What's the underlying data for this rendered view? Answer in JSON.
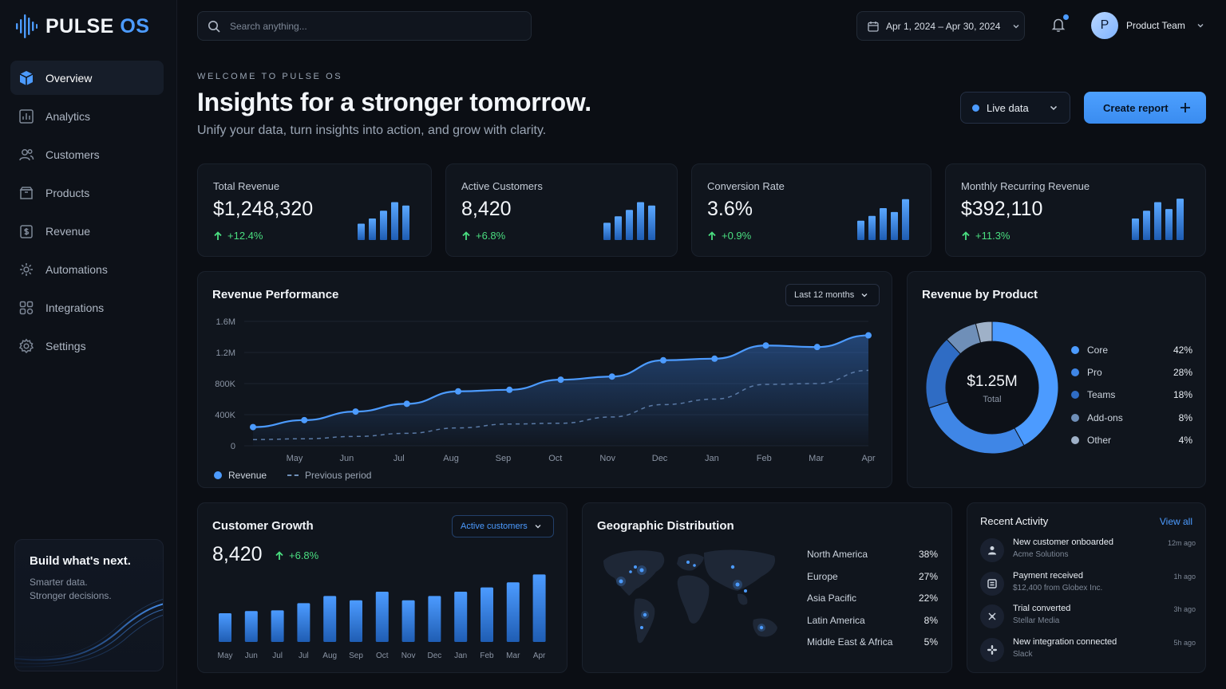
{
  "app": {
    "name_main": "PULSE",
    "name_accent": "OS"
  },
  "colors": {
    "accent": "#4c9bff",
    "background": "#0b0e14",
    "card": "#10151d",
    "positive": "#4ade80"
  },
  "sidebar": {
    "items": [
      {
        "label": "Overview",
        "icon": "overview-icon",
        "active": true
      },
      {
        "label": "Analytics",
        "icon": "analytics-icon"
      },
      {
        "label": "Customers",
        "icon": "customers-icon"
      },
      {
        "label": "Products",
        "icon": "products-icon"
      },
      {
        "label": "Revenue",
        "icon": "revenue-icon"
      },
      {
        "label": "Automations",
        "icon": "automations-icon"
      },
      {
        "label": "Integrations",
        "icon": "integrations-icon"
      },
      {
        "label": "Settings",
        "icon": "settings-icon"
      }
    ],
    "promo": {
      "title": "Build what's next.",
      "line1": "Smarter data.",
      "line2": "Stronger decisions."
    }
  },
  "topbar": {
    "search_placeholder": "Search anything...",
    "date_range": "Apr 1, 2024 – Apr 30, 2024",
    "user": {
      "initial": "P",
      "name": "Product Team"
    }
  },
  "hero": {
    "eyebrow": "WELCOME TO PULSE OS",
    "title": "Insights for a stronger tomorrow.",
    "subtitle": "Unify your data, turn insights into action, and grow with clarity.",
    "live_label": "Live data",
    "create_label": "Create report"
  },
  "kpis": [
    {
      "label": "Total Revenue",
      "value": "$1,248,320",
      "delta": "+12.4%"
    },
    {
      "label": "Active Customers",
      "value": "8,420",
      "delta": "+6.8%"
    },
    {
      "label": "Conversion Rate",
      "value": "3.6%",
      "delta": "+0.9%"
    },
    {
      "label": "Monthly Recurring Revenue",
      "value": "$392,110",
      "delta": "+11.3%"
    }
  ],
  "revenue_performance": {
    "title": "Revenue Performance",
    "range": "Last 12 months",
    "legend_current": "Revenue",
    "legend_previous": "Previous period"
  },
  "revenue_by_product": {
    "title": "Revenue by Product",
    "total_value": "$1.25M",
    "total_label": "Total"
  },
  "customer_growth": {
    "title": "Customer Growth",
    "filter": "Active customers",
    "value": "8,420",
    "delta": "+6.8%"
  },
  "geo": {
    "title": "Geographic Distribution",
    "regions": [
      {
        "name": "North America",
        "pct": "38%"
      },
      {
        "name": "Europe",
        "pct": "27%"
      },
      {
        "name": "Asia Pacific",
        "pct": "22%"
      },
      {
        "name": "Latin America",
        "pct": "8%"
      },
      {
        "name": "Middle East & Africa",
        "pct": "5%"
      }
    ]
  },
  "activity": {
    "title": "Recent Activity",
    "view_all": "View all",
    "items": [
      {
        "title": "New customer onboarded",
        "sub": "Acme Solutions",
        "time": "12m ago",
        "icon": "user-add-icon"
      },
      {
        "title": "Payment received",
        "sub": "$12,400 from Globex Inc.",
        "time": "1h ago",
        "icon": "payment-icon"
      },
      {
        "title": "Trial converted",
        "sub": "Stellar Media",
        "time": "3h ago",
        "icon": "convert-icon"
      },
      {
        "title": "New integration connected",
        "sub": "Slack",
        "time": "5h ago",
        "icon": "slack-icon"
      }
    ]
  },
  "chart_data": [
    {
      "type": "line",
      "title": "Revenue Performance",
      "x": [
        "Apr",
        "May",
        "Jun",
        "Jul",
        "Aug",
        "Sep",
        "Oct",
        "Nov",
        "Dec",
        "Jan",
        "Feb",
        "Mar",
        "Apr"
      ],
      "x_tick_labels": [
        "May",
        "Jun",
        "Jul",
        "Aug",
        "Sep",
        "Oct",
        "Nov",
        "Dec",
        "Jan",
        "Feb",
        "Mar",
        "Apr"
      ],
      "yticks": [
        "0",
        "400K",
        "800K",
        "1.2M",
        "1.6M"
      ],
      "ylim": [
        0,
        1600000
      ],
      "series": [
        {
          "name": "Revenue",
          "values": [
            240000,
            330000,
            440000,
            540000,
            700000,
            720000,
            850000,
            890000,
            1100000,
            1120000,
            1290000,
            1270000,
            1420000
          ]
        },
        {
          "name": "Previous period",
          "values": [
            80000,
            90000,
            120000,
            160000,
            230000,
            280000,
            290000,
            370000,
            530000,
            600000,
            790000,
            800000,
            970000
          ]
        }
      ],
      "grid": true,
      "legend": "bottom-left"
    },
    {
      "type": "pie",
      "title": "Revenue by Product",
      "categories": [
        "Core",
        "Pro",
        "Teams",
        "Add-ons",
        "Other"
      ],
      "values": [
        42,
        28,
        18,
        8,
        4
      ],
      "colors": [
        "#4c9bff",
        "#3f86e6",
        "#2f6cc4",
        "#6f8fb8",
        "#9fb1c8"
      ],
      "legend": "right"
    },
    {
      "type": "bar",
      "title": "Customer Growth",
      "categories": [
        "May",
        "Jun",
        "Jul",
        "Jul",
        "Aug",
        "Sep",
        "Oct",
        "Nov",
        "Dec",
        "Jan",
        "Feb",
        "Mar",
        "Apr"
      ],
      "values": [
        40,
        43,
        44,
        54,
        64,
        58,
        70,
        58,
        64,
        70,
        76,
        83,
        94
      ]
    },
    {
      "type": "bar",
      "title": "Total Revenue trend",
      "values": [
        38,
        50,
        68,
        88,
        80
      ]
    },
    {
      "type": "bar",
      "title": "Active Customers trend",
      "values": [
        40,
        55,
        70,
        88,
        80
      ]
    },
    {
      "type": "bar",
      "title": "Conversion Rate trend",
      "values": [
        45,
        56,
        74,
        65,
        95
      ]
    },
    {
      "type": "bar",
      "title": "Monthly Recurring Revenue trend",
      "values": [
        50,
        68,
        88,
        72,
        96
      ]
    }
  ]
}
